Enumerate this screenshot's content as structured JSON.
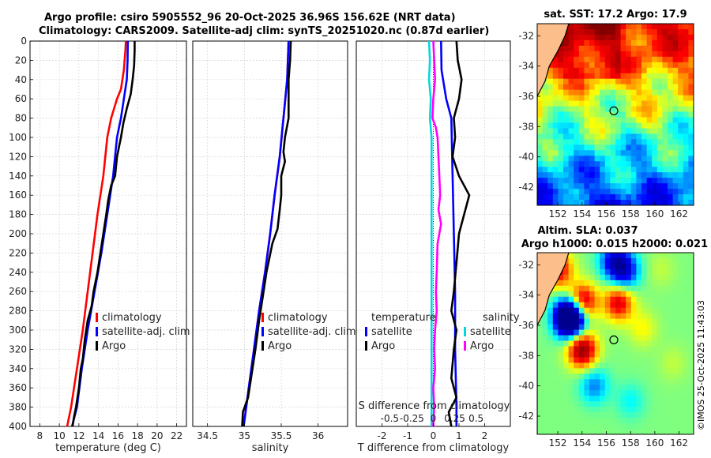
{
  "header": {
    "title_line1": "Argo profile: csiro 5905552_96 20-Oct-2025 36.96S 156.62E (NRT data)",
    "title_line2": "Climatology: CARS2009. Satellite-adj clim: synTS_20251020.nc (0.87d earlier)"
  },
  "credit": "©IMOS 25-Oct-2025 11:43:03",
  "chart_data": [
    {
      "type": "line",
      "id": "temperature",
      "xlabel": "temperature (deg C)",
      "ylabel": "",
      "xlim": [
        7,
        23
      ],
      "ylim": [
        400,
        0
      ],
      "xticks": [
        8,
        10,
        12,
        14,
        16,
        18,
        20,
        22
      ],
      "yticks": [
        0,
        20,
        40,
        60,
        80,
        100,
        120,
        140,
        160,
        180,
        200,
        220,
        240,
        260,
        280,
        300,
        320,
        340,
        360,
        380,
        400
      ],
      "grid": true,
      "legend": [
        "climatology",
        "satellite-adj. clim",
        "Argo"
      ],
      "series": [
        {
          "name": "climatology",
          "color": "#ff0000",
          "points": [
            [
              16.8,
              0
            ],
            [
              16.75,
              10
            ],
            [
              16.6,
              30
            ],
            [
              16.3,
              50
            ],
            [
              15.9,
              60
            ],
            [
              15.3,
              80
            ],
            [
              14.9,
              100
            ],
            [
              14.5,
              140
            ],
            [
              13.9,
              180
            ],
            [
              13.4,
              220
            ],
            [
              12.9,
              260
            ],
            [
              12.4,
              300
            ],
            [
              11.8,
              340
            ],
            [
              11.2,
              380
            ],
            [
              10.8,
              400
            ]
          ]
        },
        {
          "name": "satellite-adj. clim",
          "color": "#0000ff",
          "points": [
            [
              17.0,
              0
            ],
            [
              16.98,
              20
            ],
            [
              16.9,
              40
            ],
            [
              16.6,
              60
            ],
            [
              16.3,
              80
            ],
            [
              15.9,
              100
            ],
            [
              15.5,
              140
            ],
            [
              14.9,
              180
            ],
            [
              14.3,
              220
            ],
            [
              13.6,
              260
            ],
            [
              12.9,
              300
            ],
            [
              12.3,
              340
            ],
            [
              11.8,
              380
            ],
            [
              11.3,
              400
            ]
          ]
        },
        {
          "name": "Argo",
          "color": "#000000",
          "points": [
            [
              17.7,
              0
            ],
            [
              17.7,
              10
            ],
            [
              17.65,
              25
            ],
            [
              17.5,
              40
            ],
            [
              17.3,
              55
            ],
            [
              16.9,
              70
            ],
            [
              16.55,
              85
            ],
            [
              16.3,
              100
            ],
            [
              15.9,
              120
            ],
            [
              15.7,
              140
            ],
            [
              15.3,
              150
            ],
            [
              15.0,
              165
            ],
            [
              14.8,
              180
            ],
            [
              14.5,
              200
            ],
            [
              14.2,
              220
            ],
            [
              13.9,
              240
            ],
            [
              13.5,
              260
            ],
            [
              13.3,
              275
            ],
            [
              12.9,
              290
            ],
            [
              12.6,
              310
            ],
            [
              12.4,
              330
            ],
            [
              12.2,
              340
            ],
            [
              12.0,
              360
            ],
            [
              11.7,
              380
            ],
            [
              11.5,
              390
            ],
            [
              11.35,
              400
            ]
          ]
        }
      ]
    },
    {
      "type": "line",
      "id": "salinity",
      "xlabel": "salinity",
      "xlim": [
        34.3,
        36.4
      ],
      "ylim": [
        400,
        0
      ],
      "xticks": [
        34.5,
        35,
        35.5,
        36
      ],
      "xtick_labels": [
        "34.5",
        "35",
        "35.5",
        "36"
      ],
      "grid": true,
      "legend": [
        "climatology",
        "satellite-adj. clim",
        "Argo"
      ],
      "series": [
        {
          "name": "climatology",
          "color": "#ff0000",
          "points": [
            [
              35.6,
              0
            ],
            [
              35.58,
              40
            ],
            [
              35.53,
              80
            ],
            [
              35.48,
              120
            ],
            [
              35.41,
              160
            ],
            [
              35.35,
              200
            ],
            [
              35.28,
              240
            ],
            [
              35.2,
              280
            ],
            [
              35.13,
              320
            ],
            [
              35.06,
              360
            ],
            [
              34.99,
              400
            ]
          ]
        },
        {
          "name": "satellite-adj. clim",
          "color": "#0000ff",
          "points": [
            [
              35.6,
              0
            ],
            [
              35.58,
              40
            ],
            [
              35.53,
              80
            ],
            [
              35.48,
              120
            ],
            [
              35.41,
              160
            ],
            [
              35.35,
              200
            ],
            [
              35.28,
              240
            ],
            [
              35.2,
              280
            ],
            [
              35.13,
              320
            ],
            [
              35.06,
              360
            ],
            [
              34.99,
              400
            ]
          ]
        },
        {
          "name": "Argo",
          "color": "#000000",
          "points": [
            [
              35.63,
              0
            ],
            [
              35.62,
              20
            ],
            [
              35.6,
              40
            ],
            [
              35.6,
              60
            ],
            [
              35.6,
              80
            ],
            [
              35.55,
              100
            ],
            [
              35.53,
              115
            ],
            [
              35.55,
              125
            ],
            [
              35.5,
              140
            ],
            [
              35.5,
              160
            ],
            [
              35.48,
              175
            ],
            [
              35.45,
              195
            ],
            [
              35.38,
              210
            ],
            [
              35.3,
              240
            ],
            [
              35.25,
              265
            ],
            [
              35.2,
              290
            ],
            [
              35.15,
              320
            ],
            [
              35.1,
              345
            ],
            [
              35.05,
              370
            ],
            [
              34.98,
              385
            ],
            [
              34.97,
              400
            ]
          ]
        }
      ]
    },
    {
      "type": "line",
      "id": "difference",
      "xlabel": "T difference from climatology",
      "xlabel_top": "S difference from climatology",
      "xlim": [
        -3,
        3
      ],
      "ylim": [
        400,
        0
      ],
      "xticks": [
        -2,
        -1,
        0,
        1,
        2
      ],
      "xtick_labels": [
        "-2",
        "-1",
        "0",
        "1",
        "2"
      ],
      "xticks_s": [
        -0.5,
        -0.25,
        0,
        0.25,
        0.5
      ],
      "xtick_labels_s": [
        "-0.5",
        "-0.25",
        "0",
        "0.25",
        "0.5"
      ],
      "grid": true,
      "legend_temperature": {
        "title": "temperature",
        "items": [
          "satellite",
          "Argo"
        ]
      },
      "legend_salinity": {
        "title": "salinity",
        "items": [
          "satellite",
          "Argo"
        ]
      },
      "series": [
        {
          "name": "temperature satellite",
          "color": "#0000ff",
          "points": [
            [
              0.3,
              0
            ],
            [
              0.32,
              30
            ],
            [
              0.5,
              60
            ],
            [
              0.7,
              80
            ],
            [
              0.75,
              140
            ],
            [
              0.8,
              200
            ],
            [
              0.85,
              260
            ],
            [
              0.85,
              320
            ],
            [
              0.9,
              380
            ],
            [
              0.9,
              400
            ]
          ]
        },
        {
          "name": "temperature Argo",
          "color": "#000000",
          "points": [
            [
              0.9,
              0
            ],
            [
              0.95,
              20
            ],
            [
              1.1,
              40
            ],
            [
              1.0,
              60
            ],
            [
              0.8,
              80
            ],
            [
              0.85,
              100
            ],
            [
              0.75,
              120
            ],
            [
              1.0,
              140
            ],
            [
              1.4,
              160
            ],
            [
              1.2,
              180
            ],
            [
              1.0,
              200
            ],
            [
              0.9,
              230
            ],
            [
              0.8,
              260
            ],
            [
              0.7,
              280
            ],
            [
              0.9,
              300
            ],
            [
              0.8,
              320
            ],
            [
              0.7,
              350
            ],
            [
              0.9,
              370
            ],
            [
              0.6,
              385
            ],
            [
              0.7,
              400
            ]
          ]
        },
        {
          "name": "salinity satellite",
          "color": "#00d8e0",
          "points": [
            [
              -0.05,
              0
            ],
            [
              -0.04,
              20
            ],
            [
              -0.05,
              40
            ],
            [
              -0.03,
              60
            ],
            [
              -0.04,
              80
            ],
            [
              -0.02,
              100
            ],
            [
              -0.02,
              140
            ],
            [
              -0.02,
              200
            ],
            [
              -0.02,
              260
            ],
            [
              -0.02,
              320
            ],
            [
              -0.02,
              400
            ]
          ]
        },
        {
          "name": "salinity Argo",
          "color": "#ff00ff",
          "points": [
            [
              0.0,
              0
            ],
            [
              0.01,
              20
            ],
            [
              0.02,
              40
            ],
            [
              0.0,
              60
            ],
            [
              -0.01,
              80
            ],
            [
              0.03,
              90
            ],
            [
              0.05,
              100
            ],
            [
              0.06,
              120
            ],
            [
              0.07,
              140
            ],
            [
              0.08,
              160
            ],
            [
              0.06,
              175
            ],
            [
              0.09,
              190
            ],
            [
              0.07,
              200
            ],
            [
              0.05,
              210
            ],
            [
              0.04,
              240
            ],
            [
              0.03,
              260
            ],
            [
              0.04,
              280
            ],
            [
              0.02,
              300
            ],
            [
              0.01,
              320
            ],
            [
              0.02,
              340
            ],
            [
              0.0,
              360
            ],
            [
              0.01,
              380
            ],
            [
              0.0,
              400
            ]
          ]
        }
      ]
    },
    {
      "type": "heatmap",
      "id": "sst_map",
      "title": "sat. SST: 17.2 Argo: 17.9",
      "xlim": [
        150.3,
        163.2
      ],
      "ylim": [
        -43.2,
        -31.2
      ],
      "xticks": [
        152,
        154,
        156,
        158,
        160,
        162
      ],
      "yticks": [
        -32,
        -34,
        -36,
        -38,
        -40,
        -42
      ],
      "argo_position": [
        156.62,
        -36.96
      ]
    },
    {
      "type": "heatmap",
      "id": "sla_map",
      "title_line1": "Altim. SLA: 0.037",
      "title_line2": "Argo h1000: 0.015 h2000: 0.021",
      "xlim": [
        150.3,
        163.2
      ],
      "ylim": [
        -43.2,
        -31.2
      ],
      "xticks": [
        152,
        154,
        156,
        158,
        160,
        162
      ],
      "yticks": [
        -32,
        -34,
        -36,
        -38,
        -40,
        -42
      ],
      "argo_position": [
        156.62,
        -36.96
      ]
    }
  ]
}
